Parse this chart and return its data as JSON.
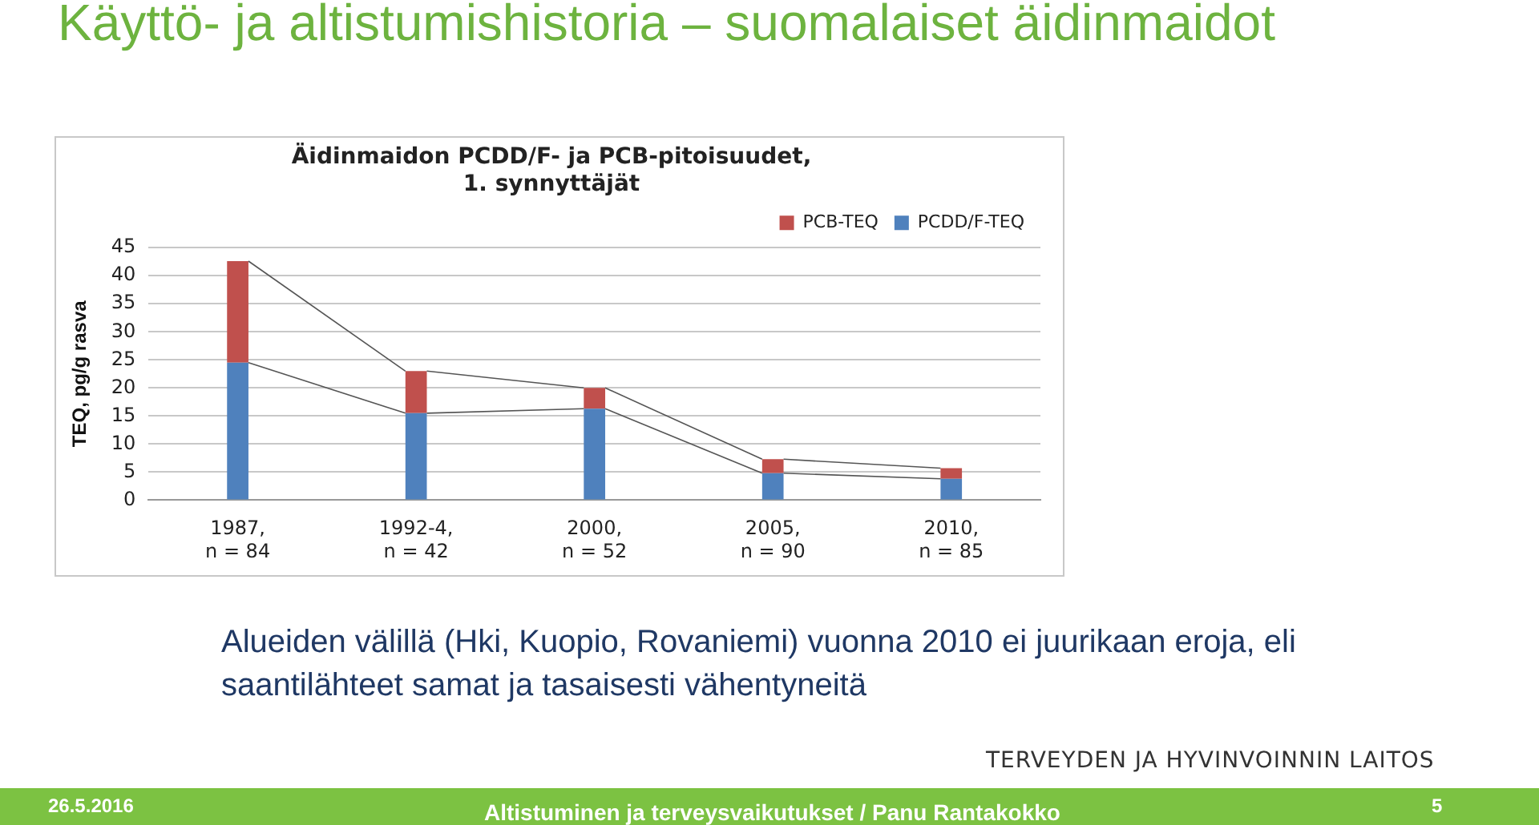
{
  "chart_data": {
    "type": "bar",
    "title": "Äidinmaidon PCDD/F- ja PCB-pitoisuudet, 1. synnyttäjät",
    "ylabel": "TEQ, pg/g rasva",
    "categories": [
      "1987, n = 84",
      "1992-4, n = 42",
      "2000, n = 52",
      "2005, n = 90",
      "2010, n = 85"
    ],
    "series": [
      {
        "name": "PCDD/F-TEQ",
        "color": "#4f81bd",
        "values": [
          24.5,
          15.5,
          16.3,
          4.8,
          3.8
        ]
      },
      {
        "name": "PCB-TEQ",
        "color": "#c0504d",
        "values": [
          18.1,
          7.5,
          3.7,
          2.5,
          1.9
        ]
      }
    ],
    "stacked": true,
    "ylim": [
      0,
      45
    ],
    "yticks": [
      0,
      5,
      10,
      15,
      20,
      25,
      30,
      35,
      40,
      45
    ],
    "grid": "y",
    "legend": "top right",
    "annotations": [
      "Käyttö- ja altistumishistoria – suomalaiset äidinmaidot",
      "Alueiden välillä (Hki, Kuopio, Rovaniemi) vuonna 2010 ei juurikaan eroja, eli saantilähteet samat ja tasaisesti vähentyneitä",
      "TERVEYDEN JA HYVINVOINNIN LAITOS",
      "26.5.2016",
      "Altistuminen ja terveysvaikutukset / Panu Rantakokko",
      "5"
    ]
  }
}
